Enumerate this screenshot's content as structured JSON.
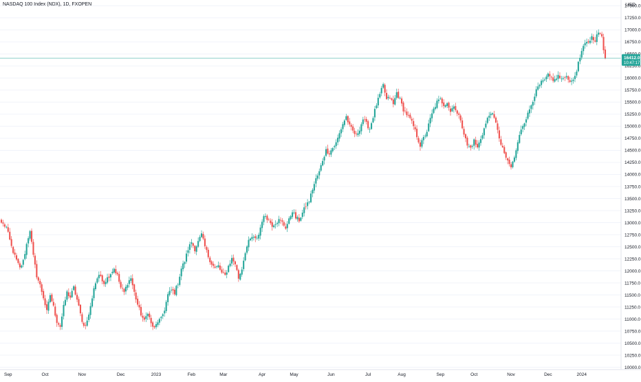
{
  "colors": {
    "up": "#26a69a",
    "down": "#ef5350",
    "price_line": "#26a69a",
    "price_tag_bg": "#26a69a",
    "axis_border": "#e0e3eb",
    "grid": "#f0f3fa"
  },
  "chart_data": {
    "type": "candlestick",
    "title": "NASDAQ 100 Index (NDX), 1D, FXOPEN",
    "currency": "USD",
    "ylim": [
      9950,
      17620
    ],
    "y_ticks": [
      10000,
      10250,
      10500,
      10750,
      11000,
      11250,
      11500,
      11750,
      12000,
      12250,
      12500,
      12750,
      13000,
      13250,
      13500,
      13750,
      14000,
      14250,
      14500,
      14750,
      15000,
      15250,
      15500,
      15750,
      16000,
      16250,
      16500,
      16750,
      17000,
      17250,
      17500
    ],
    "y_tick_labels": [
      "10000.0",
      "10250.0",
      "10500.0",
      "10750.0",
      "11000.0",
      "11250.0",
      "11500.0",
      "11750.0",
      "12000.0",
      "12250.0",
      "12500.0",
      "12750.0",
      "13000.0",
      "13250.0",
      "13500.0",
      "13750.0",
      "14000.0",
      "14250.0",
      "14500.0",
      "14750.0",
      "15000.0",
      "15250.0",
      "15500.0",
      "15750.0",
      "16000.0",
      "16250.0",
      "16500.0",
      "16750.0",
      "17000.0",
      "17250.0",
      "17500.0"
    ],
    "x_ticks": [
      {
        "label": "Sep",
        "bar": 4
      },
      {
        "label": "Oct",
        "bar": 26
      },
      {
        "label": "Nov",
        "bar": 48
      },
      {
        "label": "Dec",
        "bar": 71
      },
      {
        "label": "2023",
        "bar": 92
      },
      {
        "label": "Feb",
        "bar": 113
      },
      {
        "label": "Mar",
        "bar": 132
      },
      {
        "label": "Apr",
        "bar": 155
      },
      {
        "label": "May",
        "bar": 174
      },
      {
        "label": "Jun",
        "bar": 196
      },
      {
        "label": "Jul",
        "bar": 218
      },
      {
        "label": "Aug",
        "bar": 238
      },
      {
        "label": "Sep",
        "bar": 261
      },
      {
        "label": "Oct",
        "bar": 281
      },
      {
        "label": "Nov",
        "bar": 303
      },
      {
        "label": "Dec",
        "bar": 325
      },
      {
        "label": "2024",
        "bar": 345
      }
    ],
    "bar_count": 360,
    "current_price": 16412.0,
    "current_price_label": "16412.0",
    "countdown_label": "10:47:17",
    "partial_hidden_label": "16500.0",
    "close_anchors": [
      [
        0,
        13000
      ],
      [
        3,
        12900
      ],
      [
        6,
        12500
      ],
      [
        8,
        12300
      ],
      [
        11,
        12050
      ],
      [
        13,
        12200
      ],
      [
        15,
        12550
      ],
      [
        17,
        12850
      ],
      [
        19,
        12300
      ],
      [
        21,
        11900
      ],
      [
        23,
        11700
      ],
      [
        25,
        11450
      ],
      [
        27,
        11150
      ],
      [
        29,
        11500
      ],
      [
        31,
        11250
      ],
      [
        33,
        10950
      ],
      [
        35,
        10850
      ],
      [
        37,
        11250
      ],
      [
        39,
        11550
      ],
      [
        41,
        11450
      ],
      [
        43,
        11650
      ],
      [
        45,
        11400
      ],
      [
        47,
        11100
      ],
      [
        49,
        10850
      ],
      [
        51,
        10950
      ],
      [
        53,
        11250
      ],
      [
        55,
        11650
      ],
      [
        57,
        11850
      ],
      [
        59,
        11900
      ],
      [
        61,
        11750
      ],
      [
        63,
        11850
      ],
      [
        65,
        11950
      ],
      [
        67,
        12050
      ],
      [
        69,
        11900
      ],
      [
        71,
        11650
      ],
      [
        73,
        11550
      ],
      [
        75,
        11750
      ],
      [
        77,
        11850
      ],
      [
        79,
        11550
      ],
      [
        81,
        11300
      ],
      [
        83,
        11100
      ],
      [
        85,
        10950
      ],
      [
        87,
        11150
      ],
      [
        89,
        10900
      ],
      [
        91,
        10800
      ],
      [
        93,
        10950
      ],
      [
        95,
        11000
      ],
      [
        97,
        11200
      ],
      [
        99,
        11500
      ],
      [
        101,
        11600
      ],
      [
        103,
        11550
      ],
      [
        105,
        11750
      ],
      [
        107,
        12050
      ],
      [
        109,
        12200
      ],
      [
        111,
        12450
      ],
      [
        113,
        12600
      ],
      [
        115,
        12450
      ],
      [
        117,
        12600
      ],
      [
        119,
        12750
      ],
      [
        121,
        12500
      ],
      [
        123,
        12300
      ],
      [
        125,
        12150
      ],
      [
        127,
        12050
      ],
      [
        129,
        12100
      ],
      [
        131,
        11950
      ],
      [
        133,
        11900
      ],
      [
        135,
        12100
      ],
      [
        137,
        12250
      ],
      [
        139,
        12150
      ],
      [
        141,
        11850
      ],
      [
        143,
        12050
      ],
      [
        145,
        12400
      ],
      [
        147,
        12600
      ],
      [
        149,
        12700
      ],
      [
        151,
        12650
      ],
      [
        153,
        12750
      ],
      [
        155,
        13050
      ],
      [
        157,
        13150
      ],
      [
        159,
        13050
      ],
      [
        161,
        12950
      ],
      [
        163,
        13000
      ],
      [
        165,
        13050
      ],
      [
        167,
        13000
      ],
      [
        169,
        12900
      ],
      [
        171,
        13050
      ],
      [
        173,
        13250
      ],
      [
        175,
        13100
      ],
      [
        177,
        13050
      ],
      [
        179,
        13200
      ],
      [
        181,
        13350
      ],
      [
        183,
        13450
      ],
      [
        185,
        13700
      ],
      [
        187,
        13900
      ],
      [
        189,
        14050
      ],
      [
        191,
        14300
      ],
      [
        193,
        14500
      ],
      [
        195,
        14450
      ],
      [
        197,
        14550
      ],
      [
        199,
        14650
      ],
      [
        201,
        14850
      ],
      [
        203,
        15050
      ],
      [
        205,
        15200
      ],
      [
        207,
        15000
      ],
      [
        209,
        14900
      ],
      [
        211,
        14800
      ],
      [
        213,
        14950
      ],
      [
        215,
        15150
      ],
      [
        217,
        15050
      ],
      [
        219,
        14950
      ],
      [
        221,
        15200
      ],
      [
        223,
        15450
      ],
      [
        225,
        15650
      ],
      [
        227,
        15850
      ],
      [
        229,
        15550
      ],
      [
        231,
        15600
      ],
      [
        233,
        15450
      ],
      [
        235,
        15700
      ],
      [
        237,
        15550
      ],
      [
        239,
        15350
      ],
      [
        241,
        15250
      ],
      [
        243,
        15150
      ],
      [
        245,
        15000
      ],
      [
        247,
        14800
      ],
      [
        249,
        14600
      ],
      [
        251,
        14750
      ],
      [
        253,
        14900
      ],
      [
        255,
        15150
      ],
      [
        257,
        15350
      ],
      [
        259,
        15500
      ],
      [
        261,
        15550
      ],
      [
        263,
        15450
      ],
      [
        265,
        15500
      ],
      [
        267,
        15300
      ],
      [
        269,
        15450
      ],
      [
        271,
        15250
      ],
      [
        273,
        15150
      ],
      [
        275,
        14850
      ],
      [
        277,
        14600
      ],
      [
        279,
        14550
      ],
      [
        281,
        14700
      ],
      [
        283,
        14550
      ],
      [
        285,
        14750
      ],
      [
        287,
        14950
      ],
      [
        289,
        15150
      ],
      [
        291,
        15300
      ],
      [
        293,
        15150
      ],
      [
        295,
        14950
      ],
      [
        297,
        14600
      ],
      [
        299,
        14450
      ],
      [
        301,
        14250
      ],
      [
        303,
        14150
      ],
      [
        305,
        14350
      ],
      [
        307,
        14650
      ],
      [
        309,
        14950
      ],
      [
        311,
        15100
      ],
      [
        313,
        15250
      ],
      [
        315,
        15450
      ],
      [
        317,
        15650
      ],
      [
        319,
        15800
      ],
      [
        321,
        15900
      ],
      [
        323,
        15950
      ],
      [
        325,
        16050
      ],
      [
        327,
        16000
      ],
      [
        329,
        15950
      ],
      [
        331,
        16050
      ],
      [
        333,
        15950
      ],
      [
        335,
        16050
      ],
      [
        337,
        16000
      ],
      [
        339,
        15900
      ],
      [
        341,
        16050
      ],
      [
        343,
        16300
      ],
      [
        345,
        16550
      ],
      [
        347,
        16700
      ],
      [
        349,
        16750
      ],
      [
        351,
        16850
      ],
      [
        353,
        16800
      ],
      [
        355,
        16950
      ],
      [
        357,
        16850
      ],
      [
        358,
        16600
      ],
      [
        359,
        16412
      ]
    ]
  }
}
